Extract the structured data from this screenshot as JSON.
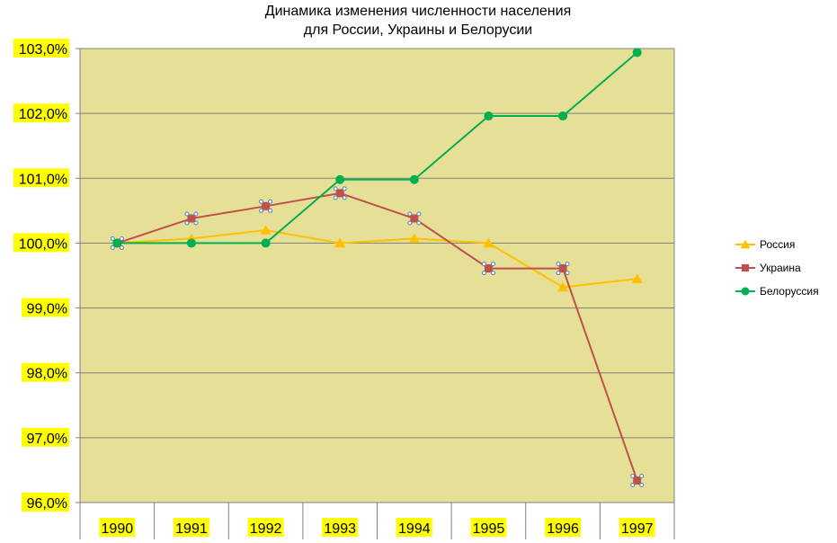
{
  "chart_data": {
    "type": "line",
    "title": [
      "Динамика изменения  численности населения",
      "для России, Украины и Белорусии"
    ],
    "categories": [
      "1990",
      "1991",
      "1992",
      "1993",
      "1994",
      "1995",
      "1996",
      "1997"
    ],
    "y_tick_labels": [
      "96,0%",
      "97,0%",
      "98,0%",
      "99,0%",
      "100,0%",
      "101,0%",
      "102,0%",
      "103,0%"
    ],
    "ylim": [
      96.0,
      103.0
    ],
    "grid": true,
    "legend_position": "right",
    "plot_background": "#e6e096",
    "tick_label_highlight": "#ffff00",
    "series": [
      {
        "name": "Россия",
        "color": "#ffc000",
        "marker": "triangle",
        "values": [
          100.0,
          100.07,
          100.2,
          100.0,
          100.07,
          100.0,
          99.32,
          99.45
        ]
      },
      {
        "name": "Украина",
        "color": "#c0504d",
        "marker": "square",
        "values": [
          100.0,
          100.38,
          100.57,
          100.77,
          100.38,
          99.61,
          99.61,
          96.34
        ]
      },
      {
        "name": "Белоруссия",
        "color": "#00b050",
        "marker": "circle",
        "values": [
          100.0,
          100.0,
          100.0,
          100.98,
          100.98,
          101.96,
          101.96,
          102.94
        ]
      }
    ]
  }
}
